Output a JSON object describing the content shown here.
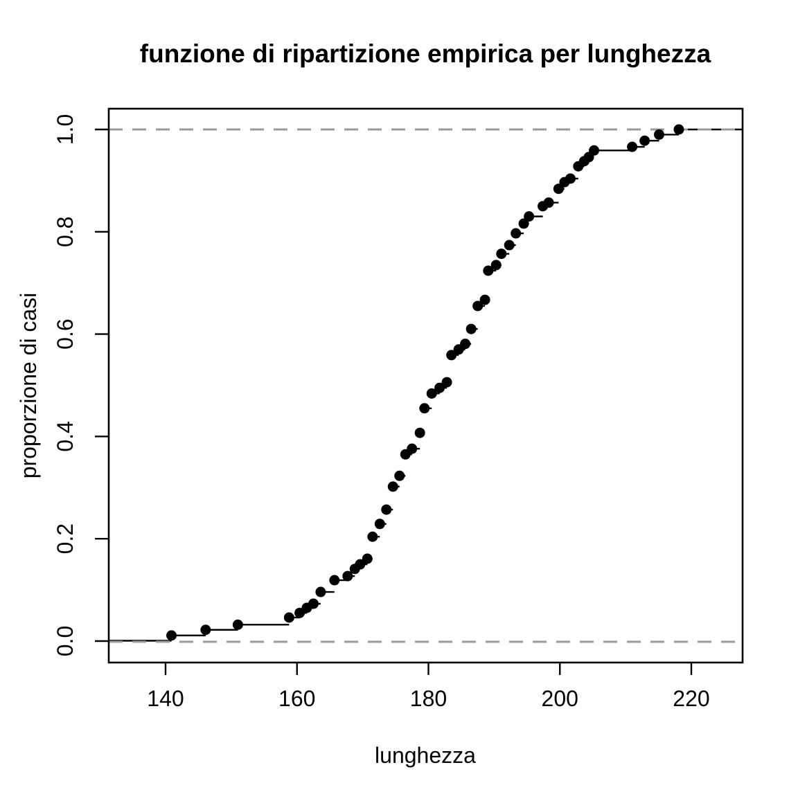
{
  "chart_data": {
    "type": "scatter",
    "subtype": "ecdf_step_function",
    "title": "funzione di ripartizione empirica per lunghezza",
    "xlabel": "lunghezza",
    "ylabel": "proporzione di casi",
    "xlim": [
      131.4,
      227.8
    ],
    "ylim": [
      -0.042,
      1.041
    ],
    "x_ticks": [
      140,
      160,
      180,
      200,
      220
    ],
    "x_tick_labels": [
      "140",
      "160",
      "180",
      "200",
      "220"
    ],
    "y_ticks": [
      0.0,
      0.2,
      0.4,
      0.6,
      0.8,
      1.0
    ],
    "y_tick_labels": [
      "0.0",
      "0.2",
      "0.4",
      "0.6",
      "0.8",
      "1.0"
    ],
    "grid": false,
    "legend": false,
    "reference_lines": {
      "values": [
        0.0,
        1.0
      ],
      "style": "dashed",
      "color": "#9a9a9a"
    },
    "points": [
      [
        140.9,
        0.011
      ],
      [
        146.1,
        0.022
      ],
      [
        151.0,
        0.032
      ],
      [
        158.8,
        0.046
      ],
      [
        160.4,
        0.055
      ],
      [
        161.5,
        0.065
      ],
      [
        162.5,
        0.073
      ],
      [
        163.6,
        0.096
      ],
      [
        165.7,
        0.119
      ],
      [
        167.7,
        0.127
      ],
      [
        168.8,
        0.141
      ],
      [
        169.6,
        0.15
      ],
      [
        170.7,
        0.161
      ],
      [
        171.5,
        0.204
      ],
      [
        172.6,
        0.229
      ],
      [
        173.6,
        0.257
      ],
      [
        174.6,
        0.302
      ],
      [
        175.6,
        0.323
      ],
      [
        176.5,
        0.365
      ],
      [
        177.5,
        0.376
      ],
      [
        178.7,
        0.407
      ],
      [
        179.4,
        0.455
      ],
      [
        180.5,
        0.484
      ],
      [
        181.7,
        0.495
      ],
      [
        182.8,
        0.506
      ],
      [
        183.5,
        0.559
      ],
      [
        184.6,
        0.57
      ],
      [
        185.6,
        0.581
      ],
      [
        186.5,
        0.61
      ],
      [
        187.5,
        0.655
      ],
      [
        188.6,
        0.667
      ],
      [
        189.1,
        0.724
      ],
      [
        190.3,
        0.735
      ],
      [
        191.1,
        0.757
      ],
      [
        192.3,
        0.774
      ],
      [
        193.3,
        0.797
      ],
      [
        194.5,
        0.816
      ],
      [
        195.3,
        0.83
      ],
      [
        197.4,
        0.85
      ],
      [
        198.3,
        0.857
      ],
      [
        199.8,
        0.884
      ],
      [
        200.7,
        0.897
      ],
      [
        201.6,
        0.904
      ],
      [
        202.8,
        0.928
      ],
      [
        203.7,
        0.938
      ],
      [
        204.4,
        0.946
      ],
      [
        205.2,
        0.959
      ],
      [
        211.0,
        0.966
      ],
      [
        212.9,
        0.978
      ],
      [
        215.1,
        0.99
      ],
      [
        218.1,
        1.0
      ]
    ]
  },
  "colors": {
    "point": "#000000",
    "step_line": "#000000",
    "reference_line": "#9a9a9a",
    "axis": "#000000",
    "background": "#ffffff"
  }
}
